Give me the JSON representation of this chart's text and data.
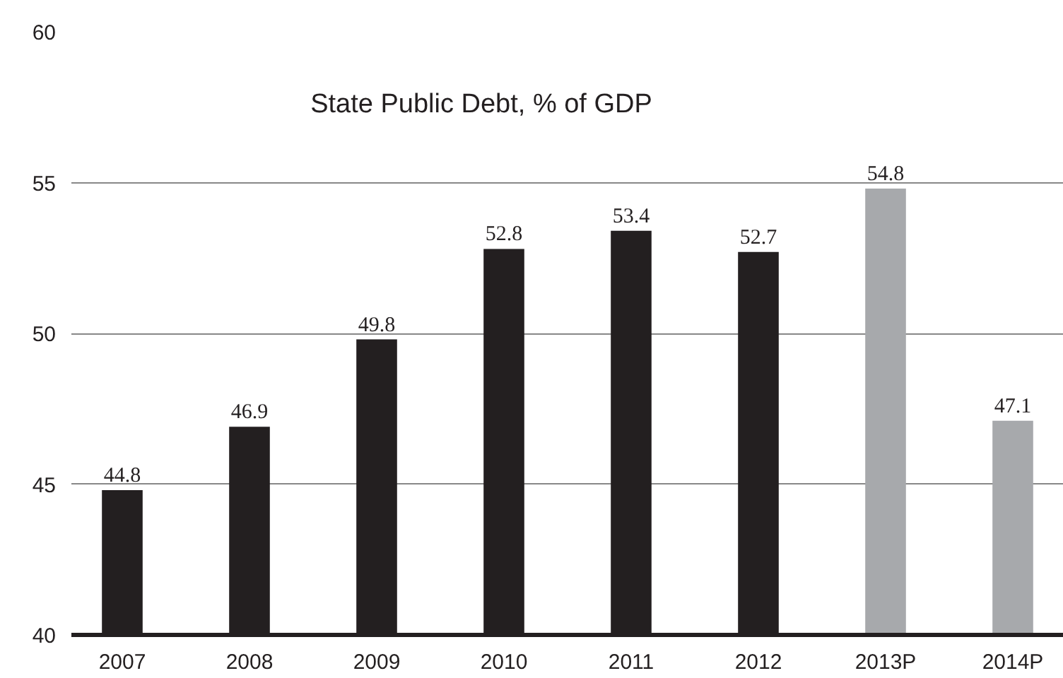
{
  "chart_data": {
    "type": "bar",
    "title": "State Public Debt, % of GDP",
    "categories": [
      "2007",
      "2008",
      "2009",
      "2010",
      "2011",
      "2012",
      "2013P",
      "2014P"
    ],
    "values": [
      44.8,
      46.9,
      49.8,
      52.8,
      53.4,
      52.7,
      54.8,
      47.1
    ],
    "colors": [
      "#231f20",
      "#231f20",
      "#231f20",
      "#231f20",
      "#231f20",
      "#231f20",
      "#a7a9ac",
      "#a7a9ac"
    ],
    "ylim": [
      40,
      60
    ],
    "yticks": [
      40,
      45,
      50,
      55,
      60
    ],
    "grid": "y",
    "data_labels": true
  }
}
